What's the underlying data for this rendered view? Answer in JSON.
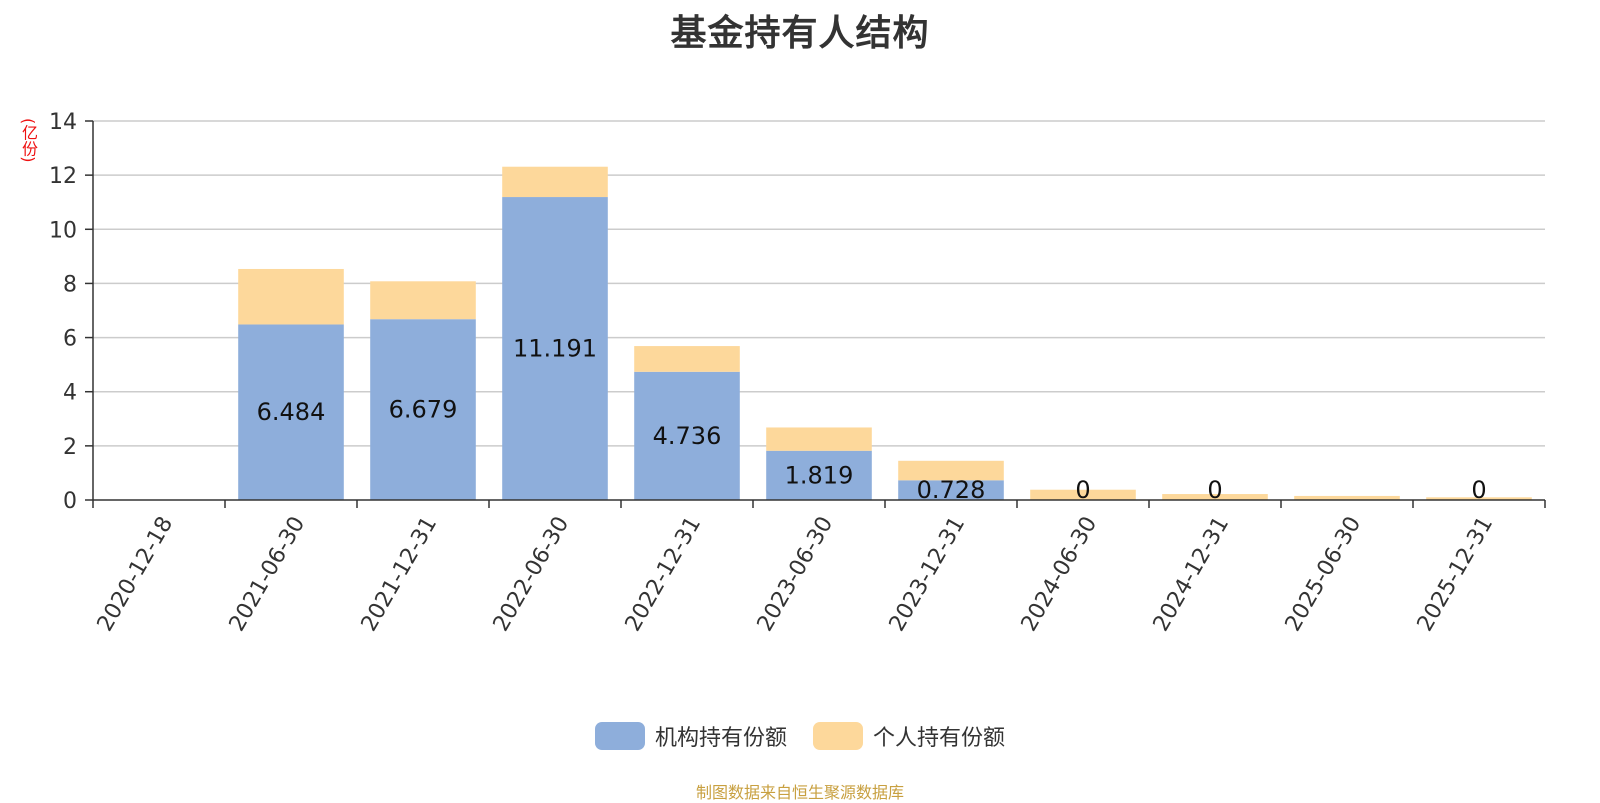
{
  "title": "基金持有人结构",
  "y_unit": "(亿份)",
  "source": "制图数据来自恒生聚源数据库",
  "colors": {
    "institutional": "#8eaedb",
    "individual": "#fdd89b",
    "grid": "#cccccc",
    "axis": "#333333",
    "unit": "#ee1111",
    "source": "#c8a040"
  },
  "legend": {
    "institutional": "机构持有份额",
    "individual": "个人持有份额"
  },
  "chart_data": {
    "type": "bar",
    "stacked": true,
    "title": "基金持有人结构",
    "ylabel": "(亿份)",
    "ylim": [
      0,
      14
    ],
    "yticks": [
      0,
      2,
      4,
      6,
      8,
      10,
      12,
      14
    ],
    "grid": true,
    "legend_position": "bottom",
    "categories": [
      "2020-12-18",
      "2021-06-30",
      "2021-12-31",
      "2022-06-30",
      "2022-12-31",
      "2023-06-30",
      "2023-12-31",
      "2024-06-30",
      "2024-12-31",
      "2025-06-30",
      "2025-12-31"
    ],
    "series": [
      {
        "name": "机构持有份额",
        "values": [
          0,
          6.484,
          6.679,
          11.191,
          4.736,
          1.819,
          0.728,
          0,
          0,
          0,
          0
        ],
        "labels": [
          "",
          "6.484",
          "6.679",
          "11.191",
          "4.736",
          "1.819",
          "0.728",
          "0",
          "0",
          "",
          "0"
        ]
      },
      {
        "name": "个人持有份额",
        "values": [
          0,
          2.05,
          1.4,
          1.12,
          0.95,
          0.86,
          0.72,
          0.38,
          0.22,
          0.15,
          0.1
        ]
      }
    ]
  }
}
